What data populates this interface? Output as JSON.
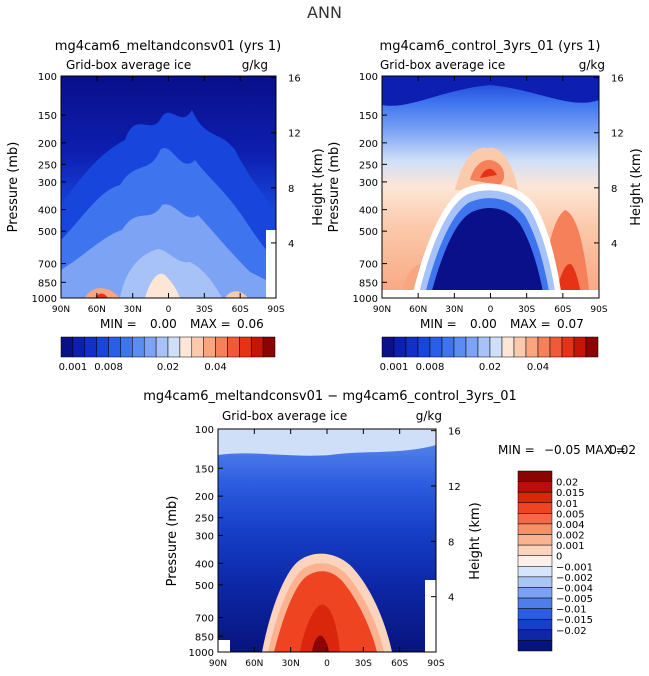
{
  "figure_title": "ANN",
  "chart_data": [
    {
      "type": "heatmap",
      "title": "mg4cam6_meltandconsv01 (yrs 1)",
      "subtitle": "Grid-box average ice",
      "units": "g/kg",
      "xlabel": "",
      "ylabel": "Pressure (mb)",
      "ylabel_right": "Height (km)",
      "xticks": [
        "90N",
        "60N",
        "30N",
        "0",
        "30S",
        "60S",
        "90S"
      ],
      "yticks": [
        "100",
        "150",
        "200",
        "250",
        "300",
        "400",
        "500",
        "700",
        "850",
        "1000"
      ],
      "height_ticks": [
        "16",
        "12",
        "8",
        "4"
      ],
      "min_label": "MIN =",
      "min_value": "0.00",
      "max_label": "MAX =",
      "max_value": "0.06",
      "colorbar_labels": [
        "0.001",
        "0.008",
        "0.02",
        "0.04"
      ],
      "colors": [
        "#0a0f8a",
        "#0d1fb0",
        "#1230c8",
        "#1846dc",
        "#2a5ee8",
        "#3e74ee",
        "#5b8cf2",
        "#7da4f4",
        "#a6c2f6",
        "#cfdff8",
        "#fde6d6",
        "#fbc9ab",
        "#f9a580",
        "#f5805a",
        "#f05a38",
        "#e63318",
        "#c41508",
        "#8c0303"
      ]
    },
    {
      "type": "heatmap",
      "title": "mg4cam6_control_3yrs_01 (yrs 1)",
      "subtitle": "Grid-box average ice",
      "units": "g/kg",
      "xlabel": "",
      "ylabel": "Pressure (mb)",
      "ylabel_right": "Height (km)",
      "xticks": [
        "90N",
        "60N",
        "30N",
        "0",
        "30S",
        "60S",
        "90S"
      ],
      "yticks": [
        "100",
        "150",
        "200",
        "250",
        "300",
        "400",
        "500",
        "700",
        "850",
        "1000"
      ],
      "height_ticks": [
        "16",
        "12",
        "8",
        "4"
      ],
      "min_label": "MIN =",
      "min_value": "0.00",
      "max_label": "MAX =",
      "max_value": "0.07",
      "colorbar_labels": [
        "0.001",
        "0.008",
        "0.02",
        "0.04"
      ]
    },
    {
      "type": "heatmap",
      "title": "mg4cam6_meltandconsv01 − mg4cam6_control_3yrs_01",
      "subtitle": "Grid-box average ice",
      "units": "g/kg",
      "xlabel": "",
      "ylabel": "Pressure (mb)",
      "ylabel_right": "Height (km)",
      "xticks": [
        "90N",
        "60N",
        "30N",
        "0",
        "30S",
        "60S",
        "90S"
      ],
      "yticks": [
        "100",
        "150",
        "200",
        "250",
        "300",
        "400",
        "500",
        "700",
        "850",
        "1000"
      ],
      "height_ticks": [
        "16",
        "12",
        "8",
        "4"
      ],
      "min_label": "MIN =",
      "min_value": "−0.05",
      "max_label": "MAX =",
      "max_value": "0.02",
      "colorbar_labels": [
        "0.02",
        "0.015",
        "0.01",
        "0.005",
        "0.004",
        "0.002",
        "0.001",
        "0",
        "−0.001",
        "−0.002",
        "−0.004",
        "−0.005",
        "−0.01",
        "−0.015",
        "−0.02"
      ],
      "colors": [
        "#8c0303",
        "#b80f06",
        "#d9260d",
        "#ee4422",
        "#f56a44",
        "#f88f68",
        "#fab291",
        "#fcd3bd",
        "#fdf0e8",
        "#d6e6fa",
        "#a9c6f5",
        "#7aa2f0",
        "#4f7eea",
        "#2c5ce0",
        "#1640c8",
        "#0d27a6",
        "#08147e"
      ]
    }
  ]
}
